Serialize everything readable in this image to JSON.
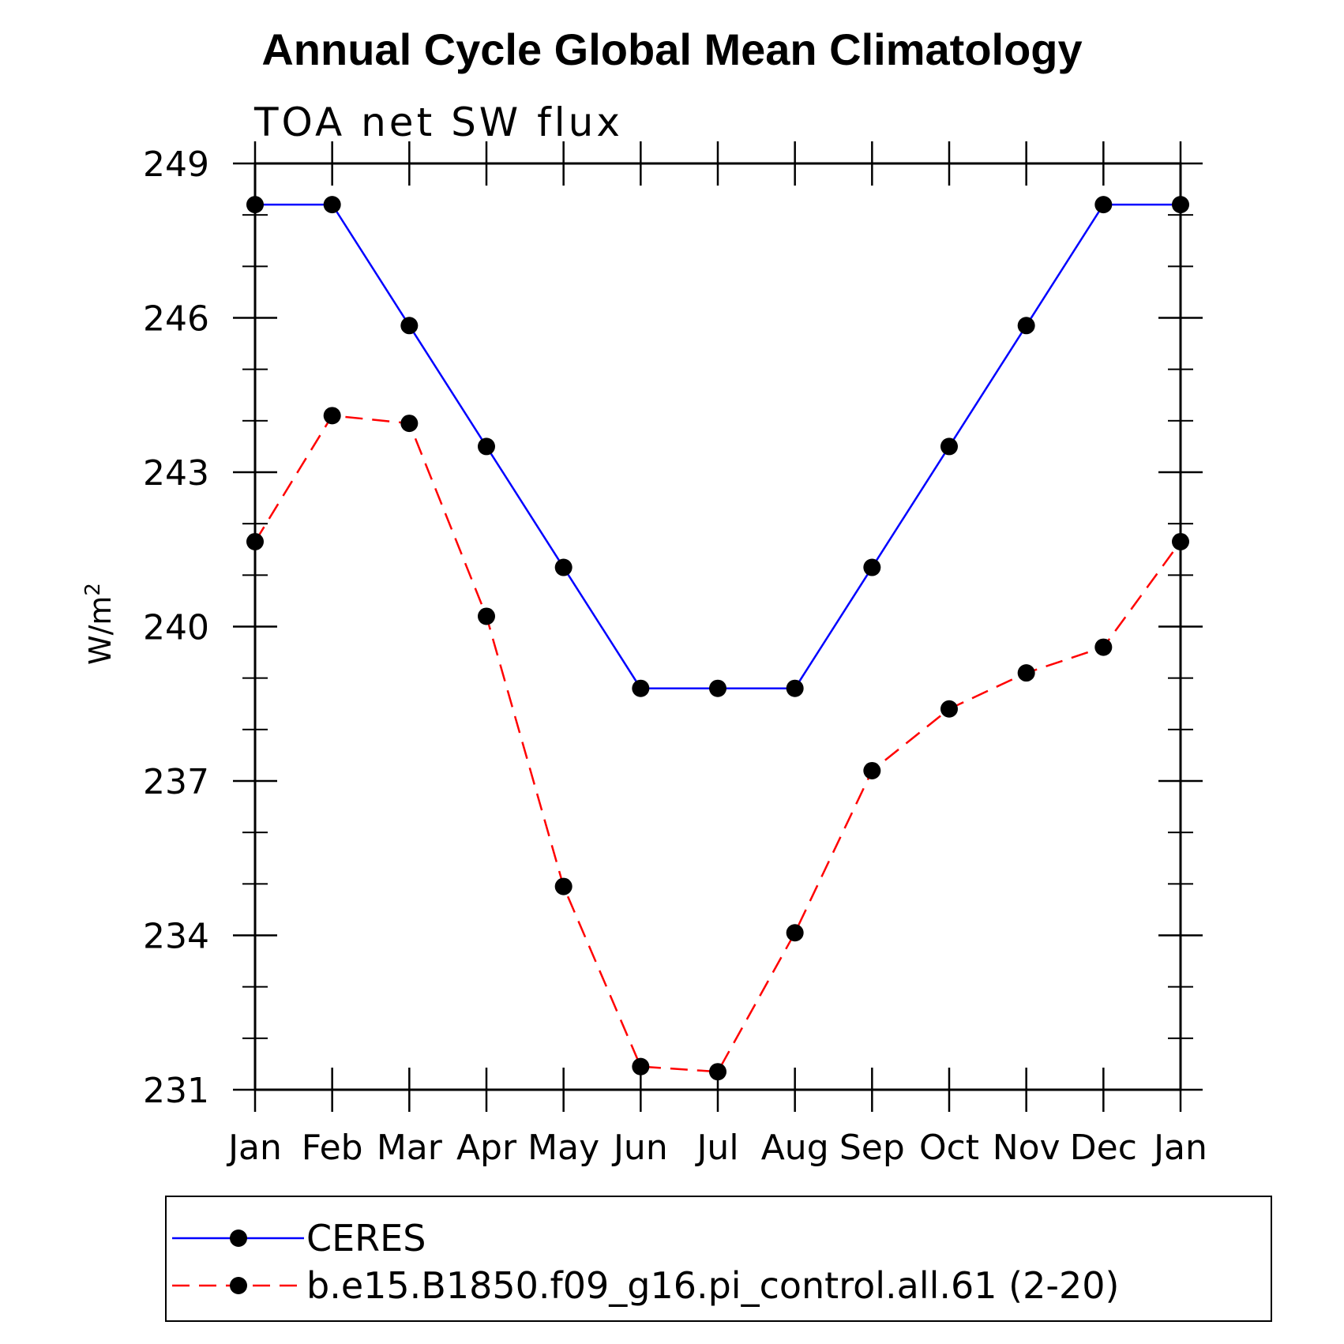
{
  "chart_data": {
    "type": "line",
    "title": "Annual Cycle Global Mean Climatology",
    "subtitle": "TOA net SW flux",
    "ylabel_base": "W/m",
    "ylabel_sup": "2",
    "xlabel": "",
    "categories": [
      "Jan",
      "Feb",
      "Mar",
      "Apr",
      "May",
      "Jun",
      "Jul",
      "Aug",
      "Sep",
      "Oct",
      "Nov",
      "Dec",
      "Jan"
    ],
    "ylim": [
      231,
      249
    ],
    "yticks": [
      "249",
      "246",
      "243",
      "240",
      "237",
      "234",
      "231"
    ],
    "ytick_values": [
      249,
      246,
      243,
      240,
      237,
      234,
      231
    ],
    "grid": false,
    "legend_position": "bottom",
    "series": [
      {
        "name": "CERES",
        "color": "#0000ff",
        "dash": "solid",
        "values": [
          248.2,
          248.2,
          245.85,
          243.5,
          241.15,
          238.8,
          238.8,
          238.8,
          241.15,
          243.5,
          245.85,
          248.2,
          248.2
        ]
      },
      {
        "name": "b.e15.B1850.f09_g16.pi_control.all.61 (2-20)",
        "color": "#ff0000",
        "dash": "dashed",
        "values": [
          241.65,
          244.1,
          243.95,
          240.2,
          234.95,
          231.45,
          231.35,
          234.05,
          237.2,
          238.4,
          239.1,
          239.6,
          241.65
        ]
      }
    ]
  }
}
